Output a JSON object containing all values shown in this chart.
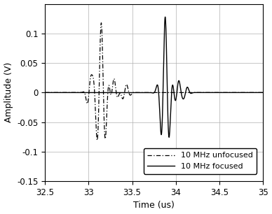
{
  "xlim": [
    32.5,
    35
  ],
  "ylim": [
    -0.15,
    0.15
  ],
  "xlabel": "Time (us)",
  "ylabel": "Amplitude (V)",
  "xticks": [
    32.5,
    33.0,
    33.5,
    34.0,
    34.5,
    35.0
  ],
  "xtick_labels": [
    "32.5",
    "33",
    "33.5",
    "34",
    "34.5",
    "35"
  ],
  "yticks": [
    -0.15,
    -0.1,
    -0.05,
    0,
    0.05,
    0.1
  ],
  "ytick_labels": [
    "-0.15",
    "-0.1",
    "-0.05",
    "0",
    "0.05",
    "0.1"
  ],
  "legend": [
    "10 MHz focused",
    "10 MHz unfocused"
  ],
  "background_color": "#ffffff",
  "grid_color": "#b0b0b0"
}
